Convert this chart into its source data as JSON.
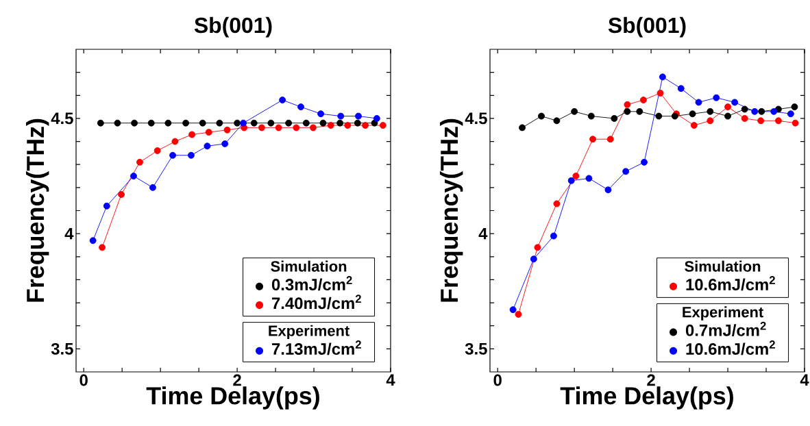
{
  "chart_data": [
    {
      "type": "line",
      "title": "Sb(001)",
      "xlabel": "Time Delay(ps)",
      "ylabel": "Frequency(THz)",
      "legend_title": [
        "Simulation",
        "Experiment"
      ],
      "legend": "bottom right",
      "marker": "circle",
      "xlim": [
        -0.1,
        4.0
      ],
      "ylim": [
        3.4,
        4.8
      ],
      "xticks": [
        0,
        {
          "value": 0.5,
          "label": null
        },
        {
          "value": 1,
          "label": null
        },
        {
          "value": 1.5,
          "label": null
        },
        2,
        {
          "value": 2.5,
          "label": null
        },
        {
          "value": 3,
          "label": null
        },
        {
          "value": 3.5,
          "label": null
        },
        4
      ],
      "yticks": [
        {
          "value": 3.5,
          "label": "3.5"
        },
        {
          "value": 3.6,
          "label": null
        },
        {
          "value": 3.7,
          "label": null
        },
        {
          "value": 3.8,
          "label": null
        },
        {
          "value": 3.9,
          "label": null
        },
        4,
        {
          "value": 4.1,
          "label": null
        },
        {
          "value": 4.2,
          "label": null
        },
        {
          "value": 4.3,
          "label": null
        },
        {
          "value": 4.4,
          "label": null
        },
        {
          "value": 4.5,
          "label": "4.5"
        },
        {
          "value": 4.6,
          "label": null
        },
        {
          "value": 4.7,
          "label": null
        }
      ],
      "series": [
        {
          "name": "0.3mJ/cm$^{2}$",
          "color": "#000000",
          "x": [
            0.22,
            0.44,
            0.66,
            0.88,
            1.1,
            1.33,
            1.55,
            1.77,
            2.0,
            2.22,
            2.44,
            2.67,
            2.9,
            3.12,
            3.34,
            3.57,
            3.79
          ],
          "values": [
            4.48,
            4.48,
            4.48,
            4.48,
            4.48,
            4.48,
            4.48,
            4.48,
            4.48,
            4.48,
            4.48,
            4.48,
            4.48,
            4.48,
            4.48,
            4.48,
            4.48
          ]
        },
        {
          "name": "7.40mJ/cm$^{2}$",
          "color": "#ff0000",
          "x": [
            0.24,
            0.49,
            0.73,
            0.96,
            1.19,
            1.41,
            1.63,
            1.87,
            2.09,
            2.32,
            2.54,
            2.77,
            2.99,
            3.22,
            3.44,
            3.67,
            3.9
          ],
          "values": [
            3.94,
            4.17,
            4.31,
            4.36,
            4.4,
            4.43,
            4.44,
            4.45,
            4.46,
            4.46,
            4.46,
            4.46,
            4.46,
            4.47,
            4.47,
            4.47,
            4.47
          ]
        },
        {
          "name": "7.13mJ/cm$^{2}$",
          "color": "#0000ff",
          "x": [
            0.12,
            0.3,
            0.65,
            0.9,
            1.16,
            1.4,
            1.61,
            1.84,
            2.08,
            2.34,
            2.59,
            2.83,
            3.09,
            3.35,
            3.58,
            3.82
          ],
          "values": [
            3.97,
            4.12,
            4.25,
            4.2,
            4.34,
            4.34,
            4.38,
            4.39,
            4.48,
            null,
            4.58,
            4.55,
            4.52,
            4.51,
            4.51,
            4.5
          ]
        }
      ]
    },
    {
      "type": "line",
      "title": "Sb(001)",
      "xlabel": "Time Delay(ps)",
      "ylabel": "Frequency(THz)",
      "legend_title": [
        "Simulation",
        "Experiment"
      ],
      "legend": "bottom right",
      "marker": "circle",
      "xlim": [
        -0.1,
        4.0
      ],
      "ylim": [
        3.4,
        4.8
      ],
      "xticks": [
        0,
        {
          "value": 0.5,
          "label": null
        },
        {
          "value": 1,
          "label": null
        },
        {
          "value": 1.5,
          "label": null
        },
        2,
        {
          "value": 2.5,
          "label": null
        },
        {
          "value": 3,
          "label": null
        },
        {
          "value": 3.5,
          "label": null
        },
        4
      ],
      "yticks": [
        {
          "value": 3.5,
          "label": "3.5"
        },
        {
          "value": 3.6,
          "label": null
        },
        {
          "value": 3.7,
          "label": null
        },
        {
          "value": 3.8,
          "label": null
        },
        {
          "value": 3.9,
          "label": null
        },
        4,
        {
          "value": 4.1,
          "label": null
        },
        {
          "value": 4.2,
          "label": null
        },
        {
          "value": 4.3,
          "label": null
        },
        {
          "value": 4.4,
          "label": null
        },
        {
          "value": 4.5,
          "label": "4.5"
        },
        {
          "value": 4.6,
          "label": null
        },
        {
          "value": 4.7,
          "label": null
        }
      ],
      "series": [
        {
          "name": "10.6mJ/cm$^{2}$",
          "color": "#ff0000",
          "x": [
            0.27,
            0.52,
            0.77,
            1.02,
            1.24,
            1.47,
            1.69,
            1.9,
            2.12,
            2.33,
            2.56,
            2.77,
            3.0,
            3.22,
            3.43,
            3.66,
            3.88
          ],
          "values": [
            3.65,
            3.94,
            4.13,
            4.25,
            4.41,
            4.41,
            4.56,
            4.58,
            4.61,
            4.52,
            4.47,
            4.49,
            4.55,
            4.5,
            4.49,
            4.49,
            4.48
          ]
        },
        {
          "name": "0.7mJ/cm$^{2}$",
          "color": "#000000",
          "x": [
            0.32,
            0.57,
            0.77,
            1.0,
            1.22,
            1.52,
            1.69,
            1.85,
            2.1,
            2.31,
            2.54,
            2.77,
            3.0,
            3.22,
            3.44,
            3.66,
            3.87
          ],
          "values": [
            4.46,
            4.51,
            4.49,
            4.53,
            4.51,
            4.5,
            4.53,
            4.53,
            4.51,
            4.51,
            4.52,
            4.53,
            4.51,
            4.54,
            4.53,
            4.54,
            4.55
          ]
        },
        {
          "name": "10.6mJ/cm$^{2}$",
          "color": "#0000ff",
          "x": [
            0.2,
            0.47,
            0.73,
            0.96,
            1.19,
            1.44,
            1.67,
            1.91,
            2.15,
            2.39,
            2.62,
            2.85,
            3.09,
            3.35,
            3.6,
            3.82
          ],
          "values": [
            3.67,
            3.89,
            3.99,
            4.23,
            4.24,
            4.19,
            4.27,
            4.31,
            4.68,
            4.63,
            4.57,
            4.59,
            4.57,
            4.53,
            4.53,
            4.52
          ]
        }
      ]
    }
  ]
}
